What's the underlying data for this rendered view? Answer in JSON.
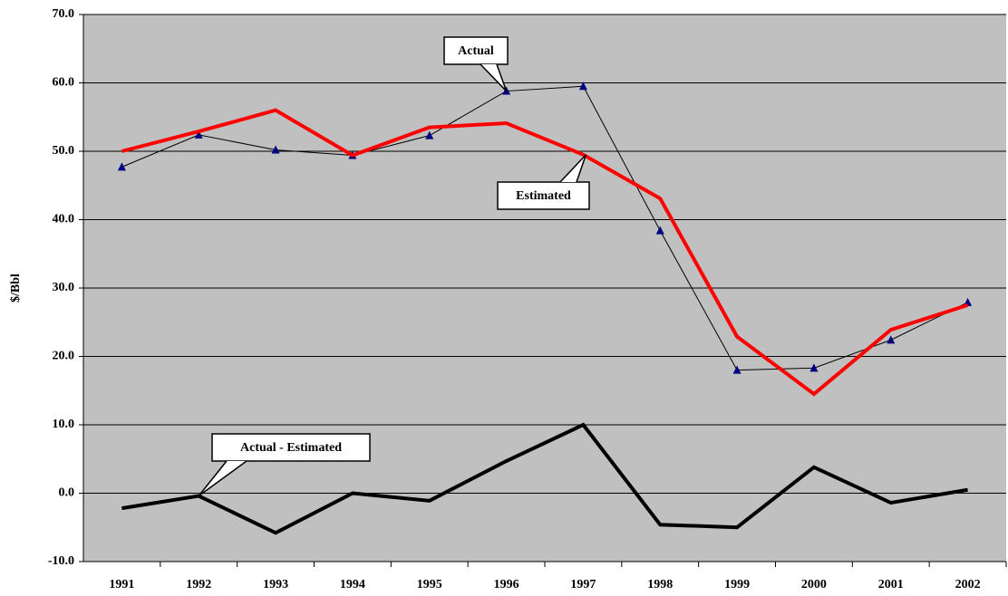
{
  "chart_data": {
    "type": "line",
    "y_label": "$/Bbl",
    "categories": [
      "1991",
      "1992",
      "1993",
      "1994",
      "1995",
      "1996",
      "1997",
      "1998",
      "1999",
      "2000",
      "2001",
      "2002"
    ],
    "series": [
      {
        "name": "Actual",
        "color": "#000000",
        "marker_color": "#000080",
        "values": [
          47.7,
          52.4,
          50.2,
          49.4,
          52.3,
          58.8,
          59.5,
          38.4,
          18.0,
          18.3,
          22.4,
          27.9
        ]
      },
      {
        "name": "Estimated",
        "color": "#ff0000",
        "values": [
          50.0,
          52.9,
          56.0,
          49.4,
          53.5,
          54.1,
          49.5,
          43.1,
          22.9,
          14.5,
          23.9,
          27.5
        ]
      },
      {
        "name": "Actual - Estimated",
        "color": "#000000",
        "values": [
          -2.2,
          -0.4,
          -5.8,
          0.0,
          -1.1,
          4.7,
          10.0,
          -4.6,
          -5.0,
          3.8,
          -1.4,
          0.5
        ]
      }
    ],
    "ylim": [
      -10,
      70
    ],
    "yticks": [
      {
        "value": -10,
        "label": "-10.0"
      },
      {
        "value": 0,
        "label": "0.0"
      },
      {
        "value": 10,
        "label": "10.0"
      },
      {
        "value": 20,
        "label": "20.0"
      },
      {
        "value": 30,
        "label": "30.0"
      },
      {
        "value": 40,
        "label": "40.0"
      },
      {
        "value": 50,
        "label": "50.0"
      },
      {
        "value": 60,
        "label": "60.0"
      },
      {
        "value": 70,
        "label": "70.0"
      }
    ],
    "grid": true,
    "background": "#c0c0c0"
  }
}
